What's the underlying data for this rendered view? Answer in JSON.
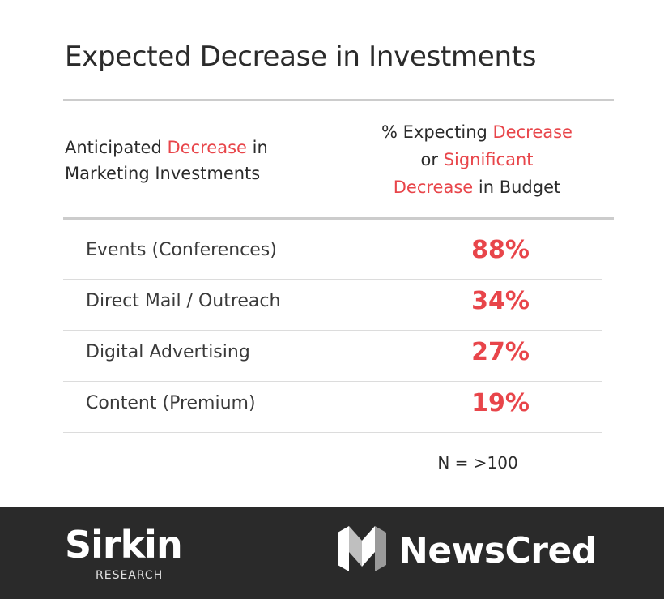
{
  "title": "Expected Decrease in Investments",
  "header": {
    "left_part1": "Anticipated ",
    "left_accent": "Decrease",
    "left_part2": " in",
    "left_line2": "Marketing Investments",
    "right_part1": "% Expecting ",
    "right_accent1": "Decrease",
    "right_part2": "or ",
    "right_accent2": "Significant",
    "right_accent3": "Decrease",
    "right_part3": " in Budget"
  },
  "rows": [
    {
      "label": "Events (Conferences)",
      "value": "88%"
    },
    {
      "label": "Direct Mail / Outreach",
      "value": "34%"
    },
    {
      "label": "Digital Advertising",
      "value": "27%"
    },
    {
      "label": "Content (Premium)",
      "value": "19%"
    }
  ],
  "note": "N = >100",
  "footer": {
    "sirkin_logo": "Sirkin",
    "sirkin_sub": "RESEARCH",
    "newscred_logo": "NewsCred"
  },
  "colors": {
    "accent": "#e8454a",
    "text": "#2b2b2b",
    "footer_bg": "#2a2a2a"
  },
  "chart_data": {
    "type": "table",
    "title": "Expected Decrease in Investments",
    "columns": [
      "Anticipated Decrease in Marketing Investments",
      "% Expecting Decrease or Significant Decrease in Budget"
    ],
    "categories": [
      "Events (Conferences)",
      "Direct Mail / Outreach",
      "Digital Advertising",
      "Content (Premium)"
    ],
    "values": [
      88,
      34,
      27,
      19
    ],
    "unit": "%",
    "note": "N = >100"
  }
}
